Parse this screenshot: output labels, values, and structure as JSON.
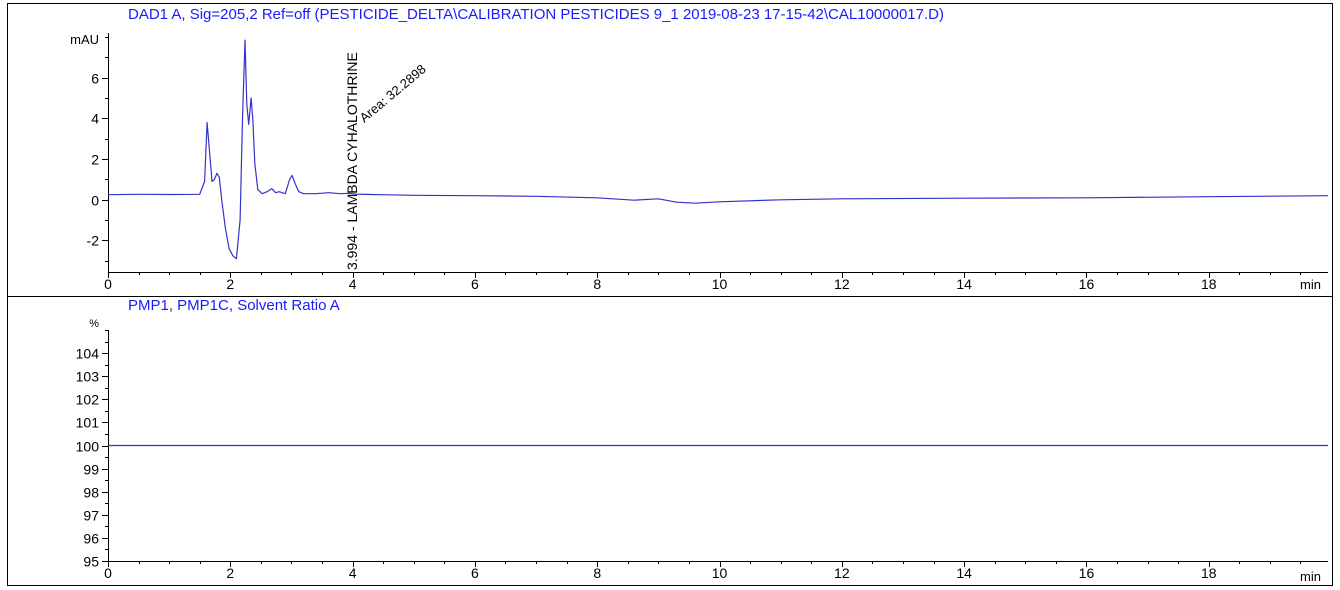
{
  "chart_data": [
    {
      "type": "line",
      "title": "DAD1 A, Sig=205,2 Ref=off (PESTICIDE_DELTA\\CALIBRATION PESTICIDES 9_1 2019-08-23 17-15-42\\CAL10000017.D)",
      "xlabel": "min",
      "ylabel": "mAU",
      "xlim": [
        0,
        19.95
      ],
      "ylim": [
        -3.55,
        8.2
      ],
      "x_ticks": [
        0,
        2,
        4,
        6,
        8,
        10,
        12,
        14,
        16,
        18
      ],
      "y_ticks": [
        -2,
        0,
        2,
        4,
        6
      ],
      "grid": false,
      "series": [
        {
          "color": "#3333cc",
          "x": [
            0,
            0.5,
            1.0,
            1.5,
            1.58,
            1.62,
            1.66,
            1.7,
            1.74,
            1.78,
            1.82,
            1.86,
            1.92,
            1.98,
            2.04,
            2.1,
            2.16,
            2.2,
            2.24,
            2.27,
            2.3,
            2.34,
            2.37,
            2.4,
            2.45,
            2.52,
            2.6,
            2.68,
            2.74,
            2.8,
            2.9,
            2.97,
            3.01,
            3.06,
            3.12,
            3.2,
            3.4,
            3.6,
            3.8,
            3.95,
            3.99,
            4.05,
            4.3,
            5,
            6,
            7,
            8,
            8.6,
            9,
            9.3,
            9.6,
            10,
            11,
            12,
            14,
            16,
            18,
            19.95
          ],
          "y": [
            0.25,
            0.27,
            0.26,
            0.27,
            0.9,
            3.8,
            2.4,
            0.9,
            1.0,
            1.3,
            1.1,
            0.0,
            -1.4,
            -2.4,
            -2.75,
            -2.9,
            -1.0,
            4.0,
            7.85,
            4.7,
            3.7,
            5.0,
            3.9,
            1.8,
            0.5,
            0.3,
            0.4,
            0.55,
            0.35,
            0.4,
            0.3,
            1.0,
            1.2,
            0.8,
            0.4,
            0.3,
            0.3,
            0.35,
            0.3,
            0.32,
            0.3,
            0.28,
            0.26,
            0.22,
            0.2,
            0.17,
            0.1,
            -0.02,
            0.05,
            -0.12,
            -0.17,
            -0.1,
            0.0,
            0.05,
            0.08,
            0.1,
            0.15,
            0.2
          ]
        }
      ],
      "annotations": [
        {
          "text": "3.994 - LAMBDA CYHALOTHRINE",
          "x": 3.994
        },
        {
          "text": "Area: 32.2898",
          "x": 3.994
        }
      ]
    },
    {
      "type": "line",
      "title": "PMP1, PMP1C, Solvent Ratio A",
      "xlabel": "min",
      "ylabel": "%",
      "xlim": [
        0,
        19.95
      ],
      "ylim": [
        95,
        105
      ],
      "x_ticks": [
        0,
        2,
        4,
        6,
        8,
        10,
        12,
        14,
        16,
        18
      ],
      "y_ticks": [
        95,
        96,
        97,
        98,
        99,
        100,
        101,
        102,
        103,
        104
      ],
      "grid": false,
      "series": [
        {
          "color": "#3333cc",
          "x": [
            0,
            19.95
          ],
          "y": [
            100,
            100
          ]
        }
      ]
    }
  ]
}
